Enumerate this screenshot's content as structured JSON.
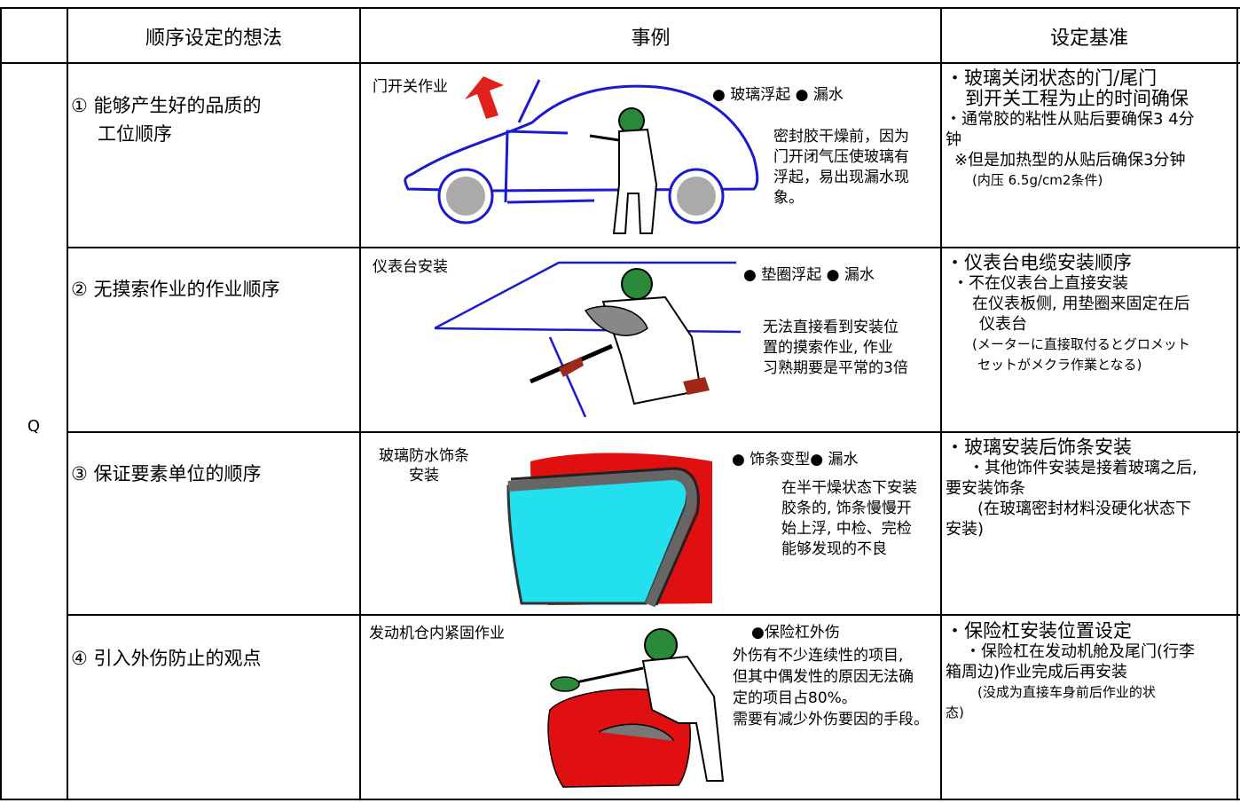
{
  "header": {
    "col_idea": "顺序设定的想法",
    "col_example": "事例",
    "col_standard": "设定基准"
  },
  "row_group_label": "Q",
  "rows": [
    {
      "idea_lines": [
        "① 能够产生好的品质的",
        "工位顺序"
      ],
      "example_title": "门开关作业",
      "bullets": "● 玻璃浮起 ● 漏水",
      "note_lines": [
        "密封胶干燥前，因为",
        "门开闭气压使玻璃有",
        "浮起，易出现漏水现",
        "象。"
      ],
      "standard_lines": [
        "・玻璃关闭状态的门/尾门",
        "到开关工程为止的时间确保",
        "・通常胶的粘性从贴后要确保3 4分",
        "钟",
        "※但是加热型的从贴后确保3分钟",
        "(内压 6.5g/cm2条件)"
      ]
    },
    {
      "idea_lines": [
        "② 无摸索作业的作业顺序"
      ],
      "example_title": "仪表台安装",
      "bullets": "● 垫圈浮起 ● 漏水",
      "note_lines": [
        "无法直接看到安装位",
        "置的摸索作业, 作业",
        "习熟期要是平常的3倍"
      ],
      "standard_lines": [
        "・仪表台电缆安装顺序",
        "・不在仪表台上直接安装",
        "在仪表板侧, 用垫圈来固定在后",
        "仪表台",
        "(メーターに直接取付るとグロメット",
        "セットがメクラ作業となる)"
      ]
    },
    {
      "idea_lines": [
        "③ 保证要素单位的顺序"
      ],
      "example_title_lines": [
        "玻璃防水饰条",
        "安装"
      ],
      "bullets": "● 饰条变型● 漏水",
      "note_lines": [
        "在半干燥状态下安装",
        "胶条的, 饰条慢慢开",
        "始上浮, 中检、完检",
        "能够发现的不良"
      ],
      "standard_lines": [
        "・玻璃安装后饰条安装",
        "・其他饰件安装是接着玻璃之后,",
        "要安装饰条",
        "(在玻璃密封材料没硬化状态下",
        "安装)"
      ]
    },
    {
      "idea_lines": [
        "④ 引入外伤防止的观点"
      ],
      "example_title": "发动机仓内紧固作业",
      "bullets": "●保险杠外伤",
      "note_lines": [
        "外伤有不少连续性的项目,",
        "但其中偶发性的原因无法确",
        "定的项目占80%。",
        "需要有减少外伤要因的手段。"
      ],
      "standard_lines": [
        "・保险杠安装位置设定",
        "・保险杠在发动机舱及尾门(行李",
        "箱周边)作业完成后再安装",
        "(没成为直接车身前后作业的状",
        "态)"
      ]
    }
  ],
  "colors": {
    "border": "#000000",
    "car_outline": "#1a1ad0",
    "arrow_red": "#e0201a",
    "worker_green": "#2a8a3a",
    "body_red": "#e01010",
    "glass_cyan": "#22e0ee"
  }
}
